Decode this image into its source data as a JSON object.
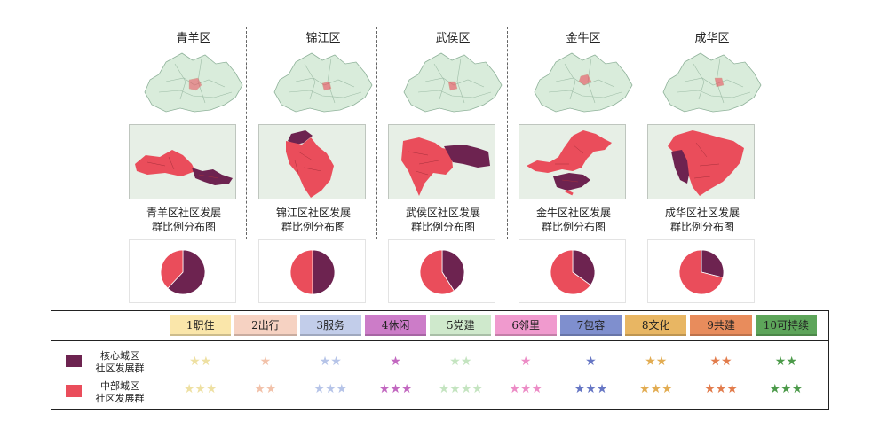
{
  "colors": {
    "core": "#6d2350",
    "middle": "#ea4d5b",
    "landscape": "#d9ecdb",
    "border": "#8fb29a"
  },
  "districts": [
    {
      "name": "青羊区",
      "caption1": "青羊区社区发展",
      "caption2": "群比例分布图",
      "core_share": 0.62
    },
    {
      "name": "锦江区",
      "caption1": "锦江区社区发展",
      "caption2": "群比例分布图",
      "core_share": 0.5
    },
    {
      "name": "武侯区",
      "caption1": "武侯区社区发展",
      "caption2": "群比例分布图",
      "core_share": 0.41
    },
    {
      "name": "金牛区",
      "caption1": "金牛区社区发展",
      "caption2": "群比例分布图",
      "core_share": 0.35
    },
    {
      "name": "成华区",
      "caption1": "成华区社区发展",
      "caption2": "群比例分布图",
      "core_share": 0.29
    }
  ],
  "legend": {
    "core": {
      "line1": "核心城区",
      "line2": "社区发展群"
    },
    "middle": {
      "line1": "中部城区",
      "line2": "社区发展群"
    }
  },
  "categories": [
    {
      "label": "1职住",
      "bg": "#fae6aa",
      "star": "#eee0a2",
      "core_stars": "★★",
      "middle_stars": "★★★"
    },
    {
      "label": "2出行",
      "bg": "#f6d2c2",
      "star": "#f2c2aa",
      "core_stars": "★",
      "middle_stars": "★★"
    },
    {
      "label": "3服务",
      "bg": "#c2cdea",
      "star": "#b6c4e8",
      "core_stars": "★★",
      "middle_stars": "★★★"
    },
    {
      "label": "4休闲",
      "bg": "#cc7cc8",
      "star": "#c268c0",
      "core_stars": "★",
      "middle_stars": "★★★"
    },
    {
      "label": "5党建",
      "bg": "#cfe9cc",
      "star": "#c4e4c0",
      "core_stars": "★★",
      "middle_stars": "★★★★"
    },
    {
      "label": "6邻里",
      "bg": "#f09ace",
      "star": "#ec8cc6",
      "core_stars": "★",
      "middle_stars": "★★★"
    },
    {
      "label": "7包容",
      "bg": "#7f8fce",
      "star": "#6676c4",
      "core_stars": "★",
      "middle_stars": "★★★"
    },
    {
      "label": "8文化",
      "bg": "#e8b663",
      "star": "#e2ac52",
      "core_stars": "★★",
      "middle_stars": "★★★"
    },
    {
      "label": "9共建",
      "bg": "#e88c5c",
      "star": "#e27c4c",
      "core_stars": "★★",
      "middle_stars": "★★★"
    },
    {
      "label": "10可持续",
      "bg": "#5da55a",
      "star": "#4c9a4a",
      "core_stars": "★★",
      "middle_stars": "★★★"
    }
  ]
}
